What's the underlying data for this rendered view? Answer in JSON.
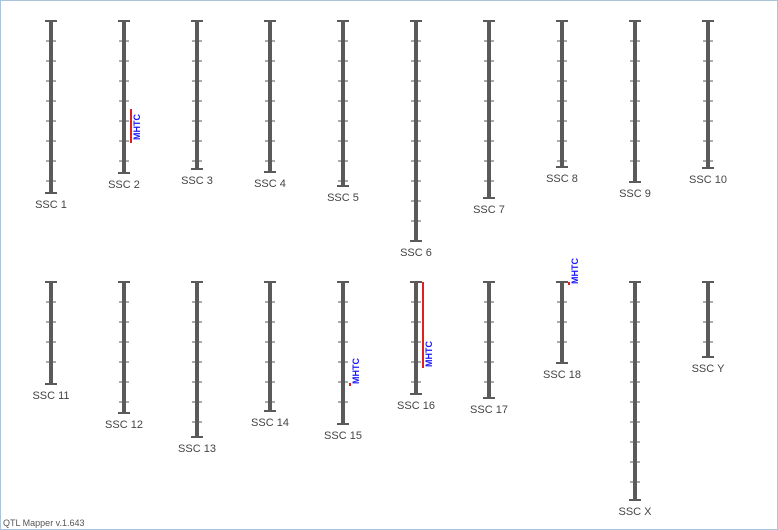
{
  "chromosomes": [
    {
      "label": "SSC 1"
    },
    {
      "label": "SSC 2"
    },
    {
      "label": "SSC 3"
    },
    {
      "label": "SSC 4"
    },
    {
      "label": "SSC 5"
    },
    {
      "label": "SSC 6"
    },
    {
      "label": "SSC 7"
    },
    {
      "label": "SSC 8"
    },
    {
      "label": "SSC 9"
    },
    {
      "label": "SSC 10"
    },
    {
      "label": "SSC 11"
    },
    {
      "label": "SSC 12"
    },
    {
      "label": "SSC 13"
    },
    {
      "label": "SSC 14"
    },
    {
      "label": "SSC 15"
    },
    {
      "label": "SSC 16"
    },
    {
      "label": "SSC 17"
    },
    {
      "label": "SSC 18"
    },
    {
      "label": "SSC X"
    },
    {
      "label": "SSC Y"
    }
  ],
  "qtls": [
    {
      "label": "MHTC"
    },
    {
      "label": "MHTC"
    },
    {
      "label": "MHTC"
    },
    {
      "label": "MHTC"
    }
  ],
  "footer": "QTL Mapper v.1.643"
}
